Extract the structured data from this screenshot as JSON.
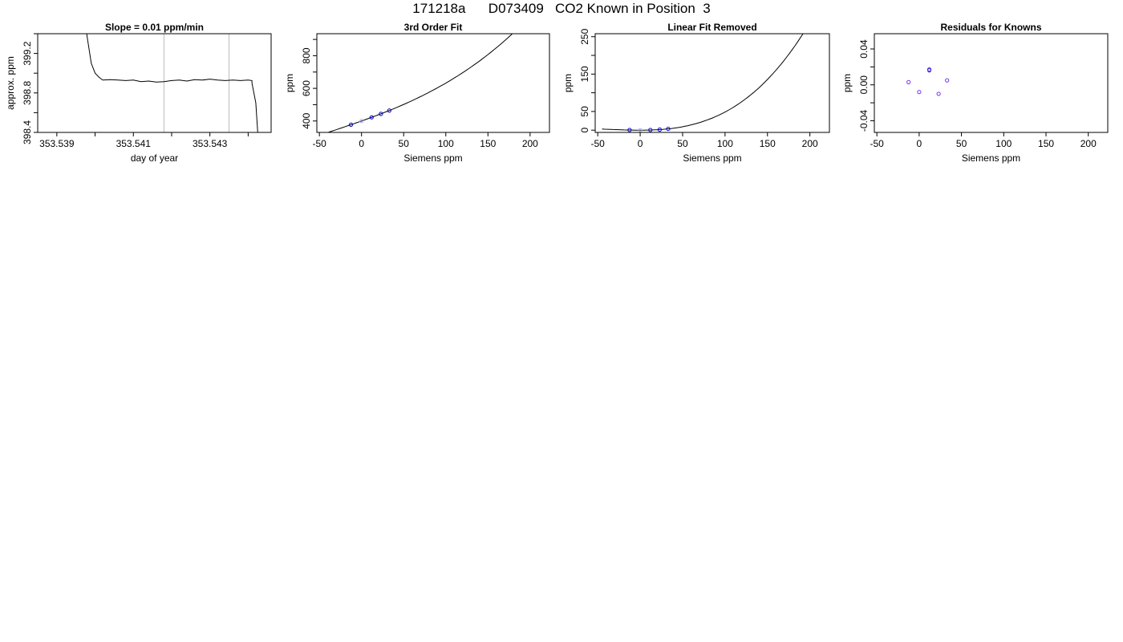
{
  "title": "171218a      D073409   CO2 Known in Position  3",
  "chart_data": [
    {
      "type": "line",
      "title": "Slope =  0.01  ppm/min",
      "xlabel": "day of year",
      "ylabel": "approx. ppm",
      "xlim": [
        353.5385,
        353.5446
      ],
      "ylim": [
        398.4,
        399.4
      ],
      "xticks": [
        353.539,
        353.54,
        353.541,
        353.542,
        353.543,
        353.544
      ],
      "xtick_labels": [
        "353.539",
        "",
        "353.541",
        "",
        "353.543",
        ""
      ],
      "yticks": [
        398.4,
        398.6,
        398.8,
        399.0,
        399.2,
        399.4
      ],
      "ytick_labels": [
        "398.4",
        "",
        "398.8",
        "",
        "399.2",
        ""
      ],
      "vlines": [
        353.5418,
        353.5435
      ],
      "series_color": "#000000",
      "vline_color": "#bbbbbb",
      "series": [
        {
          "x": [
            353.5397,
            353.5399,
            353.54,
            353.5401,
            353.5402,
            353.5404,
            353.5406,
            353.5408,
            353.541,
            353.5412,
            353.5414,
            353.5416,
            353.5418,
            353.542,
            353.5422,
            353.5424,
            353.5426,
            353.5428,
            353.543,
            353.5432,
            353.5434,
            353.5436,
            353.5438,
            353.544,
            353.5441,
            353.5441,
            353.5442,
            353.54425
          ],
          "y": [
            399.6,
            399.1,
            399.0,
            398.96,
            398.93,
            398.935,
            398.93,
            398.925,
            398.93,
            398.915,
            398.92,
            398.91,
            398.915,
            398.925,
            398.93,
            398.92,
            398.935,
            398.93,
            398.94,
            398.93,
            398.925,
            398.93,
            398.925,
            398.93,
            398.925,
            398.9,
            398.7,
            398.4
          ]
        }
      ]
    },
    {
      "type": "line",
      "title": "3rd Order Fit",
      "xlabel": "Siemens ppm",
      "ylabel": "ppm",
      "xlim": [
        -53,
        223
      ],
      "ylim": [
        330,
        935
      ],
      "xticks": [
        -50,
        0,
        50,
        100,
        150,
        200
      ],
      "yticks": [
        400,
        500,
        600,
        700,
        800,
        900
      ],
      "ytick_labels": [
        "400",
        "",
        "600",
        "",
        "800",
        ""
      ],
      "curve": {
        "x_range": [
          -45,
          215
        ],
        "coeffs": [
          400,
          1.84,
          0.0028,
          2.02e-05
        ],
        "color": "#000000"
      },
      "points": {
        "x": [
          -12.5,
          0,
          12,
          23,
          33
        ],
        "y": [
          377.4,
          400,
          422.6,
          443.8,
          463.9
        ],
        "colors": [
          "#0000cc",
          "#aaaaff",
          "#0000cc",
          "#0000cc",
          "#0000cc"
        ]
      }
    },
    {
      "type": "line",
      "title": "Linear Fit Removed",
      "xlabel": "Siemens ppm",
      "ylabel": "ppm",
      "xlim": [
        -53,
        223
      ],
      "ylim": [
        -6,
        258
      ],
      "xticks": [
        -50,
        0,
        50,
        100,
        150,
        200
      ],
      "yticks": [
        0,
        50,
        100,
        150,
        200,
        250
      ],
      "ytick_labels": [
        "0",
        "50",
        "",
        "150",
        "",
        "250"
      ],
      "curve": {
        "x_range": [
          -45,
          215
        ],
        "coeffs": [
          0,
          0,
          0.0025,
          2.35e-05
        ],
        "color": "#000000"
      },
      "points": {
        "x": [
          -12.5,
          0,
          12,
          23,
          33
        ],
        "y": [
          0.5,
          0,
          0.5,
          1.5,
          3.5
        ],
        "colors": [
          "#0000cc",
          "#aaaaff",
          "#0000cc",
          "#0000cc",
          "#0000cc"
        ]
      }
    },
    {
      "type": "scatter",
      "title": "Residuals for Knowns",
      "xlabel": "Siemens ppm",
      "ylabel": "ppm",
      "xlim": [
        -53,
        223
      ],
      "ylim": [
        -0.053,
        0.057
      ],
      "xticks": [
        -50,
        0,
        50,
        100,
        150,
        200
      ],
      "yticks": [
        -0.04,
        -0.02,
        0.0,
        0.02,
        0.04
      ],
      "ytick_labels": [
        "-0.04",
        "",
        "0.00",
        "",
        "0.04"
      ],
      "points": {
        "x": [
          -12.5,
          0,
          12,
          12,
          23,
          33
        ],
        "y": [
          0.003,
          -0.008,
          0.017,
          0.016,
          -0.01,
          0.005
        ],
        "colors": [
          "#7733ee",
          "#7733ee",
          "#0000cc",
          "#7733ee",
          "#7733ee",
          "#7733ee"
        ]
      }
    }
  ]
}
